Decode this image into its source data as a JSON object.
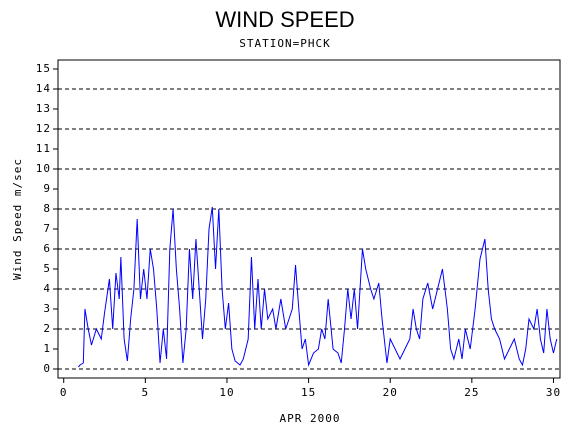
{
  "chart_data": {
    "type": "line",
    "title": "WIND SPEED",
    "subtitle": "STATION=PHCK",
    "xlabel": "APR 2000",
    "ylabel": "Wind Speed m/sec",
    "xlim": [
      -0.35,
      30.4
    ],
    "ylim": [
      -0.45,
      15.45
    ],
    "xticks": [
      0,
      5,
      10,
      15,
      20,
      25,
      30
    ],
    "yticks": [
      0,
      1,
      2,
      3,
      4,
      5,
      6,
      7,
      8,
      9,
      10,
      11,
      12,
      13,
      14,
      15
    ],
    "grid": true,
    "series": [
      {
        "name": "Wind Speed",
        "color": "#0000ff",
        "x": [
          0.9,
          1.0,
          1.2,
          1.3,
          1.5,
          1.7,
          2.0,
          2.3,
          2.5,
          2.8,
          3.0,
          3.2,
          3.4,
          3.5,
          3.7,
          3.9,
          4.1,
          4.3,
          4.5,
          4.7,
          4.9,
          5.1,
          5.3,
          5.5,
          5.7,
          5.9,
          6.1,
          6.3,
          6.5,
          6.7,
          6.9,
          7.1,
          7.3,
          7.5,
          7.7,
          7.9,
          8.1,
          8.3,
          8.5,
          8.7,
          8.9,
          9.1,
          9.3,
          9.5,
          9.7,
          9.9,
          10.1,
          10.3,
          10.5,
          10.8,
          11.0,
          11.3,
          11.5,
          11.7,
          11.9,
          12.1,
          12.3,
          12.5,
          12.8,
          13.0,
          13.3,
          13.6,
          14.0,
          14.2,
          14.4,
          14.6,
          14.8,
          15.0,
          15.3,
          15.6,
          15.8,
          16.0,
          16.2,
          16.5,
          16.8,
          17.0,
          17.2,
          17.4,
          17.6,
          17.8,
          18.0,
          18.3,
          18.5,
          18.8,
          19.0,
          19.3,
          19.5,
          19.8,
          20.0,
          20.3,
          20.6,
          20.9,
          21.2,
          21.4,
          21.6,
          21.8,
          22.0,
          22.3,
          22.6,
          22.9,
          23.2,
          23.5,
          23.7,
          23.9,
          24.2,
          24.4,
          24.6,
          24.9,
          25.2,
          25.5,
          25.8,
          26.0,
          26.2,
          26.4,
          26.7,
          27.0,
          27.3,
          27.6,
          27.9,
          28.1,
          28.3,
          28.5,
          28.8,
          29.0,
          29.2,
          29.4,
          29.6,
          29.8,
          30.0,
          30.2
        ],
        "values": [
          0.1,
          0.2,
          0.3,
          3,
          2,
          1.2,
          2,
          1.5,
          2.8,
          4.5,
          2,
          4.8,
          3.5,
          5.6,
          1.5,
          0.4,
          2.5,
          4,
          7.5,
          3.5,
          5,
          3.5,
          6,
          5,
          3,
          0.3,
          2,
          0.5,
          6,
          8,
          5,
          3,
          0.3,
          2,
          6,
          3.5,
          6.5,
          4,
          1.5,
          3.5,
          7,
          8.1,
          5,
          8,
          4,
          2,
          3.3,
          1,
          0.4,
          0.2,
          0.5,
          1.5,
          5.6,
          2,
          4.5,
          2,
          4,
          2.5,
          3,
          2,
          3.5,
          2,
          3,
          5.2,
          3,
          1,
          1.5,
          0.2,
          0.8,
          1,
          2,
          1.5,
          3.5,
          1,
          0.8,
          0.3,
          2,
          4,
          2.5,
          4,
          2,
          6,
          5,
          4,
          3.5,
          4.3,
          2.5,
          0.3,
          1.5,
          1,
          0.5,
          1,
          1.5,
          3,
          2,
          1.5,
          3.5,
          4.3,
          3,
          4,
          5,
          3,
          1,
          0.5,
          1.5,
          0.5,
          2,
          1,
          3,
          5.5,
          6.5,
          4,
          2.5,
          2,
          1.5,
          0.5,
          1,
          1.5,
          0.5,
          0.2,
          1,
          2.5,
          2,
          3,
          1.5,
          0.8,
          3,
          1.5,
          0.8,
          1.5
        ]
      }
    ]
  }
}
